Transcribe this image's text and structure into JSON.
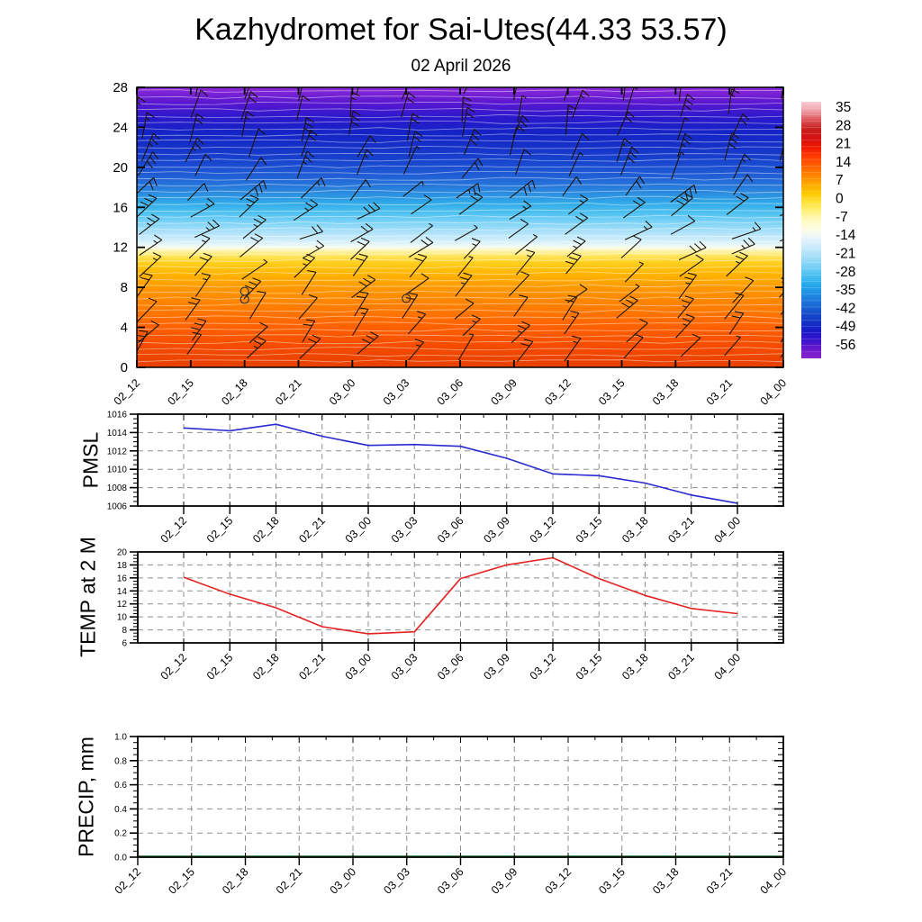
{
  "title": "Kazhydromet for Sai-Utes(44.33 53.57)",
  "subtitle": "02 April 2026",
  "x_axis": {
    "times": [
      "02_12",
      "02_15",
      "02_18",
      "02_21",
      "03_00",
      "03_03",
      "03_06",
      "03_09",
      "03_12",
      "03_15",
      "03_18",
      "03_21",
      "04_00"
    ]
  },
  "colorbar": {
    "levels": [
      35,
      28,
      21,
      14,
      7,
      0,
      -7,
      -14,
      -21,
      -28,
      -35,
      -42,
      -49,
      -56
    ],
    "colors_top_to_bottom": [
      "#f9ccd4",
      "#ef9fa6",
      "#dd5358",
      "#c81f1f",
      "#d61010",
      "#ee1900",
      "#ff3c00",
      "#ff6000",
      "#ff8400",
      "#ffa800",
      "#ffc800",
      "#ffe23c",
      "#fff180",
      "#fffbc4",
      "#fdfde8",
      "#e4f4fc",
      "#c6eafb",
      "#a2ddf8",
      "#77cff5",
      "#48bef0",
      "#23a9ec",
      "#1f8ce2",
      "#1b6ed8",
      "#1750cc",
      "#1334c4",
      "#181ac8",
      "#3a14cc",
      "#6a18cc",
      "#8c22cc"
    ]
  },
  "chart_data": [
    {
      "type": "heatmap",
      "name": "vertical-profile",
      "categories": [
        "02_12",
        "02_15",
        "02_18",
        "02_21",
        "03_00",
        "03_03",
        "03_06",
        "03_09",
        "03_12",
        "03_15",
        "03_18",
        "03_21",
        "04_00"
      ],
      "ylim": [
        0,
        28
      ],
      "yticks": [
        0,
        4,
        8,
        12,
        16,
        20,
        24,
        28
      ],
      "colorbar_levels": [
        35,
        28,
        21,
        14,
        7,
        0,
        -7,
        -14,
        -21,
        -28,
        -35,
        -42,
        -49,
        -56
      ],
      "color_profile": [
        {
          "h": 0,
          "color": "#e64000"
        },
        {
          "h": 2,
          "color": "#f54a00"
        },
        {
          "h": 4,
          "color": "#ff6000"
        },
        {
          "h": 6,
          "color": "#ff7d00"
        },
        {
          "h": 8,
          "color": "#ff9900"
        },
        {
          "h": 9.5,
          "color": "#ffb800"
        },
        {
          "h": 10.5,
          "color": "#ffd020"
        },
        {
          "h": 11.2,
          "color": "#ffe866"
        },
        {
          "h": 11.8,
          "color": "#fdf7c8"
        },
        {
          "h": 12.1,
          "color": "#f3fbf3"
        },
        {
          "h": 12.5,
          "color": "#d9f1fb"
        },
        {
          "h": 13.5,
          "color": "#aee2f9"
        },
        {
          "h": 14.5,
          "color": "#7dd3f6"
        },
        {
          "h": 15.5,
          "color": "#4cc0f0"
        },
        {
          "h": 16.5,
          "color": "#2fa8e8"
        },
        {
          "h": 17.5,
          "color": "#2b8ade"
        },
        {
          "h": 19,
          "color": "#2161d6"
        },
        {
          "h": 20.5,
          "color": "#1846cf"
        },
        {
          "h": 22,
          "color": "#1532c8"
        },
        {
          "h": 23.5,
          "color": "#1423c6"
        },
        {
          "h": 25,
          "color": "#2b18cc"
        },
        {
          "h": 26.5,
          "color": "#5a17d0"
        },
        {
          "h": 28,
          "color": "#8e2ad8"
        }
      ],
      "wind_barbs": {
        "columns": 13,
        "rows": 14,
        "color": "#1c140a"
      },
      "calm_circles": [
        {
          "t": 2,
          "h": 7.6
        },
        {
          "t": 2,
          "h": 6.8
        },
        {
          "t": 5,
          "h": 6.9
        }
      ],
      "contour_line_color": "#ffffff"
    },
    {
      "type": "line",
      "name": "pmsl",
      "label": "PMSL",
      "categories": [
        "02_12",
        "02_15",
        "02_18",
        "02_21",
        "03_00",
        "03_03",
        "03_06",
        "03_09",
        "03_12",
        "03_15",
        "03_18",
        "03_21",
        "04_00"
      ],
      "values": [
        1014.5,
        1014.2,
        1014.9,
        1013.6,
        1012.6,
        1012.7,
        1012.5,
        1011.2,
        1009.5,
        1009.3,
        1008.5,
        1007.2,
        1006.3
      ],
      "ylim": [
        1006,
        1016
      ],
      "yticks": [
        1006,
        1008,
        1010,
        1012,
        1014,
        1016
      ],
      "minor_step": 0.5,
      "tick_decimals": 0,
      "line_color": "#2a2ad0",
      "grid": true
    },
    {
      "type": "line",
      "name": "temp2m",
      "label": "TEMP at 2 M",
      "categories": [
        "02_12",
        "02_15",
        "02_18",
        "02_21",
        "03_00",
        "03_03",
        "03_06",
        "03_09",
        "03_12",
        "03_15",
        "03_18",
        "03_21",
        "04_00"
      ],
      "values": [
        16.1,
        13.5,
        11.4,
        8.5,
        7.4,
        7.7,
        15.9,
        18.0,
        19.1,
        15.9,
        13.3,
        11.3,
        10.5
      ],
      "ylim": [
        6,
        20
      ],
      "yticks": [
        6,
        8,
        10,
        12,
        14,
        16,
        18,
        20
      ],
      "minor_step": 0.5,
      "tick_decimals": 0,
      "line_color": "#e42222",
      "grid": true
    },
    {
      "type": "line",
      "name": "precip",
      "label": "PRECIP, mm",
      "categories": [
        "02_12",
        "02_15",
        "02_18",
        "02_21",
        "03_00",
        "03_03",
        "03_06",
        "03_09",
        "03_12",
        "03_15",
        "03_18",
        "03_21",
        "04_00"
      ],
      "values": [
        0,
        0,
        0,
        0,
        0,
        0,
        0,
        0,
        0,
        0,
        0,
        0,
        0
      ],
      "ylim": [
        0,
        1
      ],
      "yticks": [
        0,
        0.2,
        0.4,
        0.6,
        0.8,
        1.0
      ],
      "minor_step": 0.05,
      "tick_decimals": 1,
      "line_color": "#0b6b0b",
      "grid": true
    }
  ]
}
